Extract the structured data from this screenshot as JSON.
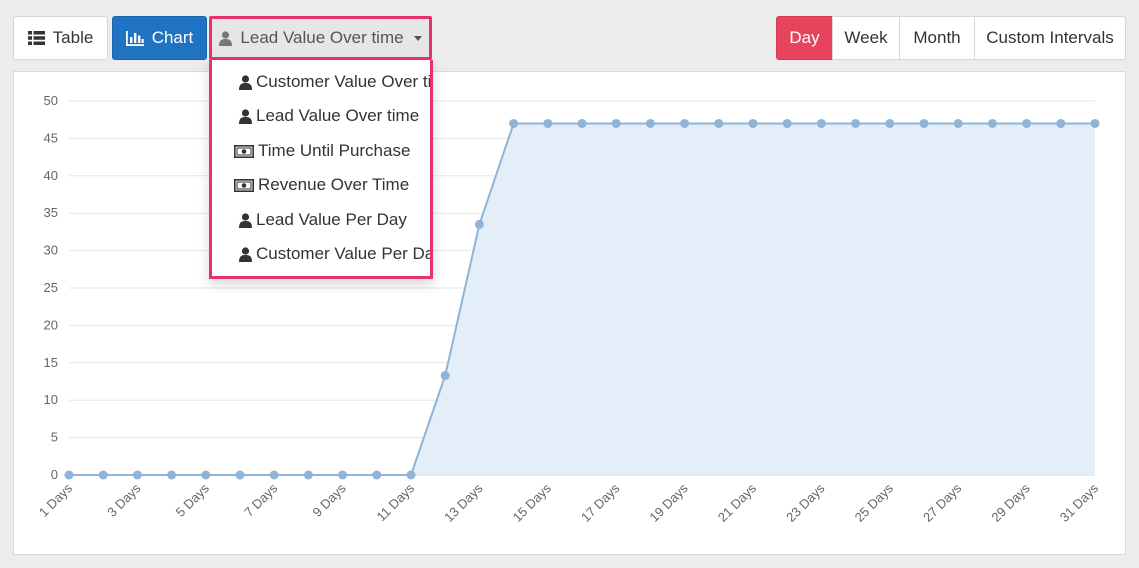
{
  "toolbar": {
    "table_label": "Table",
    "chart_label": "Chart",
    "lead_label": "Lead Value Over time"
  },
  "intervals": [
    "Day",
    "Week",
    "Month",
    "Custom Intervals"
  ],
  "active_interval": "Day",
  "dropdown": {
    "items": [
      {
        "label": "Customer Value Over time",
        "icon": "user-icon"
      },
      {
        "label": "Lead Value Over time",
        "icon": "user-icon"
      },
      {
        "label": "Time Until Purchase",
        "icon": "money-icon"
      },
      {
        "label": "Revenue Over Time",
        "icon": "money-icon"
      },
      {
        "label": "Lead Value Per Day",
        "icon": "user-icon"
      },
      {
        "label": "Customer Value Per Day",
        "icon": "user-icon"
      }
    ]
  },
  "colors": {
    "accent": "#1f73c2",
    "active": "#e8435c",
    "highlight": "#e8336a",
    "line": "#8fb4d6",
    "area": "#e3eef8"
  },
  "chart_data": {
    "type": "area",
    "x": [
      "1 Days",
      "2 Days",
      "3 Days",
      "4 Days",
      "5 Days",
      "6 Days",
      "7 Days",
      "8 Days",
      "9 Days",
      "10 Days",
      "11 Days",
      "12 Days",
      "13 Days",
      "14 Days",
      "15 Days",
      "16 Days",
      "17 Days",
      "18 Days",
      "19 Days",
      "20 Days",
      "21 Days",
      "22 Days",
      "23 Days",
      "24 Days",
      "25 Days",
      "26 Days",
      "27 Days",
      "28 Days",
      "29 Days",
      "30 Days",
      "31 Days"
    ],
    "xtick_labels": [
      "1 Days",
      "3 Days",
      "5 Days",
      "7 Days",
      "9 Days",
      "11 Days",
      "13 Days",
      "15 Days",
      "17 Days",
      "19 Days",
      "21 Days",
      "23 Days",
      "25 Days",
      "27 Days",
      "29 Days",
      "31 Days"
    ],
    "series": [
      {
        "values": [
          0,
          0,
          0,
          0,
          0,
          0,
          0,
          0,
          0,
          0,
          0,
          13.3,
          33.5,
          47,
          47,
          47,
          47,
          47,
          47,
          47,
          47,
          47,
          47,
          47,
          47,
          47,
          47,
          47,
          47,
          47,
          47
        ]
      }
    ],
    "ylim": [
      0,
      50
    ],
    "yticks": [
      0,
      5,
      10,
      15,
      20,
      25,
      30,
      35,
      40,
      45,
      50
    ],
    "grid": true
  }
}
